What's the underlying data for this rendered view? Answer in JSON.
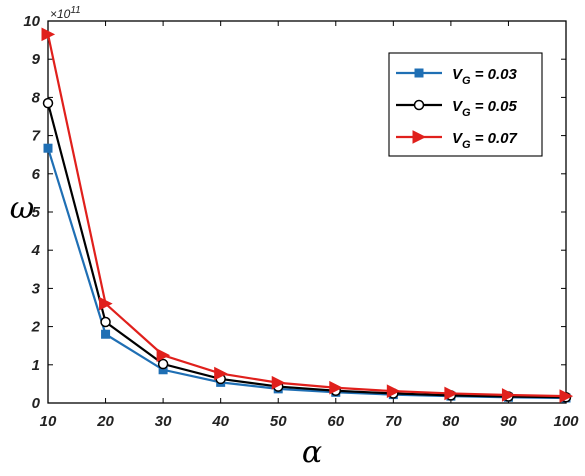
{
  "chart_data": {
    "type": "line",
    "title": "",
    "xlabel": "α",
    "ylabel": "ω",
    "y_exponent_base": "×10",
    "y_exponent_power": "11",
    "x": [
      10,
      20,
      30,
      40,
      50,
      60,
      70,
      80,
      90,
      100
    ],
    "xlim": [
      10,
      100
    ],
    "ylim": [
      0,
      10
    ],
    "xticks": [
      "10",
      "20",
      "30",
      "40",
      "50",
      "60",
      "70",
      "80",
      "90",
      "100"
    ],
    "yticks": [
      "0",
      "1",
      "2",
      "3",
      "4",
      "5",
      "6",
      "7",
      "8",
      "9",
      "10"
    ],
    "grid": false,
    "legend_position": "top-right",
    "series": [
      {
        "legend_prefix": "V",
        "legend_subscript": "G",
        "legend_suffix": " = 0.03",
        "color": "#1f6fb4",
        "marker": "square-filled",
        "values": [
          6.67,
          1.8,
          0.87,
          0.54,
          0.37,
          0.28,
          0.22,
          0.18,
          0.15,
          0.13
        ]
      },
      {
        "legend_prefix": "V",
        "legend_subscript": "G",
        "legend_suffix": " = 0.05",
        "color": "#000000",
        "marker": "circle-open",
        "values": [
          7.85,
          2.12,
          1.02,
          0.63,
          0.43,
          0.32,
          0.25,
          0.2,
          0.17,
          0.15
        ]
      },
      {
        "legend_prefix": "V",
        "legend_subscript": "G",
        "legend_suffix": " = 0.07",
        "color": "#e0201c",
        "marker": "triangle-right-filled",
        "values": [
          9.65,
          2.6,
          1.25,
          0.77,
          0.53,
          0.4,
          0.31,
          0.25,
          0.21,
          0.18
        ]
      }
    ]
  }
}
